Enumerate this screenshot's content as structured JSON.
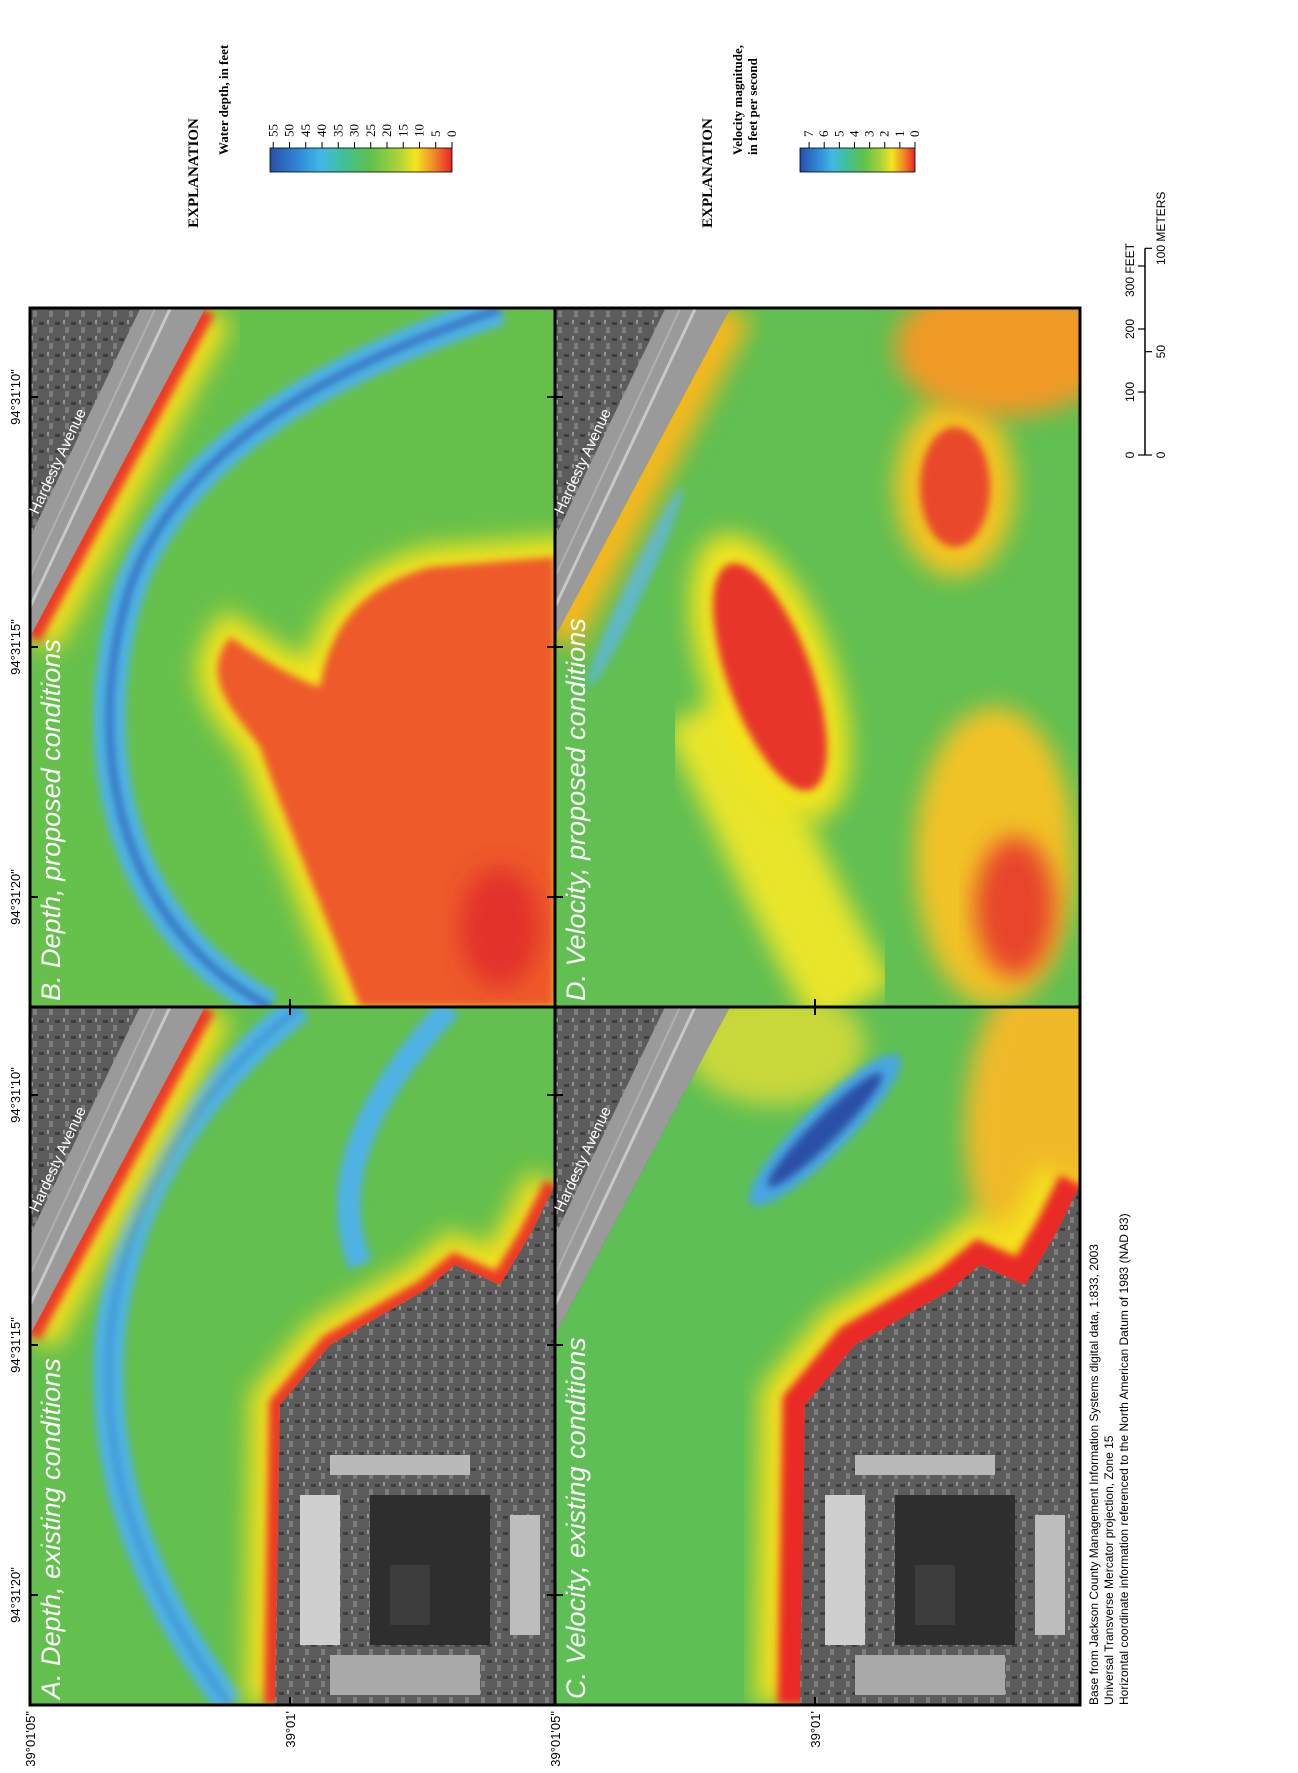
{
  "panels": [
    {
      "title": "A. Depth, existing conditions",
      "road_label": "Hardesty Avenue"
    },
    {
      "title": "B. Depth, proposed conditions",
      "road_label": "Hardesty Avenue"
    },
    {
      "title": "C. Velocity, existing conditions",
      "road_label": "Hardesty Avenue"
    },
    {
      "title": "D. Velocity, proposed conditions",
      "road_label": "Hardesty Avenue"
    }
  ],
  "latitude_labels": [
    [
      "39°01'05\"",
      "39°01'"
    ],
    [
      "39°01'05\"",
      "39°01'"
    ]
  ],
  "longitude_labels": [
    [
      "94°31'20\"",
      "94°31'15\"",
      "94°31'10\""
    ],
    [
      "94°31'20\"",
      "94°31'15\"",
      "94°31'10\""
    ]
  ],
  "legends": [
    {
      "heading": "EXPLANATION",
      "title": [
        "Water depth, in feet"
      ],
      "lim": [
        0,
        56
      ],
      "ticks": [
        55,
        50,
        45,
        40,
        35,
        30,
        25,
        20,
        15,
        10,
        5,
        0
      ]
    },
    {
      "heading": "EXPLANATION",
      "title": [
        "Velocity magnitude,",
        "in feet per second"
      ],
      "lim": [
        0,
        7.6
      ],
      "ticks": [
        7,
        6,
        5,
        4,
        3,
        2,
        1,
        0
      ]
    }
  ],
  "scale_bar": {
    "feet": [
      0,
      100,
      200,
      {
        "value": 300,
        "label": "300 FEET"
      }
    ],
    "meters": [
      0,
      50,
      {
        "value": 100,
        "label": "100 METERS"
      }
    ]
  },
  "credits": [
    "Base from Jackson County Management Information Systems digital data, 1:833, 2003",
    "Universal Transverse Mercator projection, Zone 15",
    "Horizontal coordinate information referenced to the North American Datum of 1983 (NAD 83)"
  ]
}
